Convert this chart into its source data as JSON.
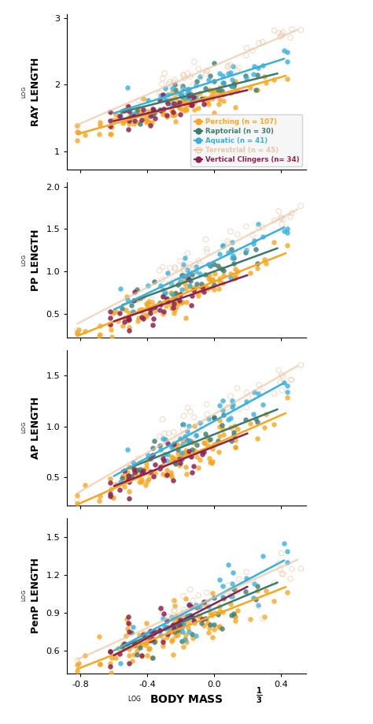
{
  "groups": [
    {
      "name": "Perching",
      "n": 107,
      "color": "#F5A623",
      "alpha_scatter": 0.8,
      "alpha_line": 1.0,
      "lw": 1.8,
      "open": false
    },
    {
      "name": "Raptorial",
      "n": 30,
      "color": "#3D7A6E",
      "alpha_scatter": 0.8,
      "alpha_line": 1.0,
      "lw": 1.8,
      "open": false
    },
    {
      "name": "Aquatic",
      "n": 41,
      "color": "#3BAFD9",
      "alpha_scatter": 0.8,
      "alpha_line": 1.0,
      "lw": 1.8,
      "open": false
    },
    {
      "name": "Terrestrial",
      "n": 45,
      "color": "#E8C5A5",
      "alpha_scatter": 0.65,
      "alpha_line": 0.65,
      "lw": 1.8,
      "open": true
    },
    {
      "name": "Vertical Clingers",
      "n": 34,
      "color": "#8B2252",
      "alpha_scatter": 0.85,
      "alpha_line": 1.0,
      "lw": 1.8,
      "open": false
    }
  ],
  "panels": [
    {
      "ylabel": "RAY LENGTH",
      "ylim": [
        0.72,
        3.05
      ],
      "yticks": [
        1.0,
        2.0,
        3.0
      ],
      "lines": [
        {
          "group": "Perching",
          "slope": 0.7,
          "intercept": 1.83
        },
        {
          "group": "Raptorial",
          "slope": 0.62,
          "intercept": 1.93
        },
        {
          "group": "Aquatic",
          "slope": 0.8,
          "intercept": 2.05
        },
        {
          "group": "Terrestrial",
          "slope": 1.08,
          "intercept": 2.28
        },
        {
          "group": "Vertical Clingers",
          "slope": 0.58,
          "intercept": 1.8
        }
      ],
      "xdata": [
        {
          "xmin": -0.82,
          "xmax": 0.43
        },
        {
          "xmin": -0.55,
          "xmax": 0.38
        },
        {
          "xmin": -0.6,
          "xmax": 0.42
        },
        {
          "xmin": -0.82,
          "xmax": 0.5
        },
        {
          "xmin": -0.6,
          "xmax": 0.2
        }
      ],
      "has_legend": true,
      "has_image": false
    },
    {
      "ylabel": "PP LENGTH",
      "ylim": [
        0.22,
        2.05
      ],
      "yticks": [
        0.5,
        1.0,
        1.5,
        2.0
      ],
      "lines": [
        {
          "group": "Perching",
          "slope": 0.78,
          "intercept": 0.88
        },
        {
          "group": "Raptorial",
          "slope": 0.72,
          "intercept": 1.0
        },
        {
          "group": "Aquatic",
          "slope": 0.95,
          "intercept": 1.12
        },
        {
          "group": "Terrestrial",
          "slope": 1.02,
          "intercept": 1.22
        },
        {
          "group": "Vertical Clingers",
          "slope": 0.68,
          "intercept": 0.82
        }
      ],
      "xdata": [
        {
          "xmin": -0.82,
          "xmax": 0.43
        },
        {
          "xmin": -0.55,
          "xmax": 0.38
        },
        {
          "xmin": -0.6,
          "xmax": 0.42
        },
        {
          "xmin": -0.82,
          "xmax": 0.5
        },
        {
          "xmin": -0.6,
          "xmax": 0.2
        }
      ],
      "has_legend": false,
      "has_image": true
    },
    {
      "ylabel": "AP LENGTH",
      "ylim": [
        0.22,
        1.75
      ],
      "yticks": [
        0.5,
        1.0,
        1.5
      ],
      "lines": [
        {
          "group": "Perching",
          "slope": 0.72,
          "intercept": 0.82
        },
        {
          "group": "Raptorial",
          "slope": 0.65,
          "intercept": 0.92
        },
        {
          "group": "Aquatic",
          "slope": 0.9,
          "intercept": 1.05
        },
        {
          "group": "Terrestrial",
          "slope": 0.95,
          "intercept": 1.12
        },
        {
          "group": "Vertical Clingers",
          "slope": 0.65,
          "intercept": 0.8
        }
      ],
      "xdata": [
        {
          "xmin": -0.82,
          "xmax": 0.43
        },
        {
          "xmin": -0.55,
          "xmax": 0.38
        },
        {
          "xmin": -0.6,
          "xmax": 0.42
        },
        {
          "xmin": -0.82,
          "xmax": 0.5
        },
        {
          "xmin": -0.6,
          "xmax": 0.2
        }
      ],
      "has_legend": false,
      "has_image": true
    },
    {
      "ylabel": "PenP LENGTH",
      "ylim": [
        0.42,
        1.65
      ],
      "yticks": [
        0.6,
        0.9,
        1.2,
        1.5
      ],
      "lines": [
        {
          "group": "Perching",
          "slope": 0.52,
          "intercept": 0.88
        },
        {
          "group": "Raptorial",
          "slope": 0.55,
          "intercept": 0.93
        },
        {
          "group": "Aquatic",
          "slope": 0.7,
          "intercept": 1.02
        },
        {
          "group": "Terrestrial",
          "slope": 0.6,
          "intercept": 1.02
        },
        {
          "group": "Vertical Clingers",
          "slope": 0.68,
          "intercept": 0.97
        }
      ],
      "xdata": [
        {
          "xmin": -0.82,
          "xmax": 0.43
        },
        {
          "xmin": -0.55,
          "xmax": 0.38
        },
        {
          "xmin": -0.6,
          "xmax": 0.42
        },
        {
          "xmin": -0.82,
          "xmax": 0.5
        },
        {
          "xmin": -0.6,
          "xmax": 0.2
        }
      ],
      "has_legend": false,
      "has_image": true
    }
  ],
  "xlim": [
    -0.88,
    0.55
  ],
  "xticks": [
    -0.8,
    -0.4,
    0.0,
    0.4
  ],
  "bg_color": "#FFFFFF",
  "scatter_size": 22,
  "legend_n_labels": [
    "Perching (n = 107)",
    "Raptorial (n = 30)",
    "Aquatic (n = 41)",
    "Terrestrial (n = 45)",
    "Vertical Clingers (n= 34)"
  ],
  "legend_colors": [
    "#F5A623",
    "#3D7A6E",
    "#3BAFD9",
    "#E8C5A5",
    "#8B2252"
  ]
}
